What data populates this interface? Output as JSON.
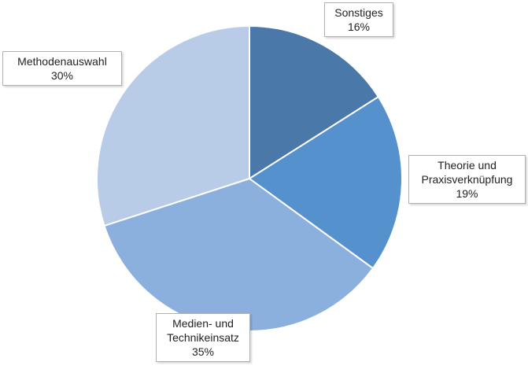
{
  "chart_data": {
    "type": "pie",
    "categories": [
      "Sonstiges",
      "Theorie und Praxisverknüpfung",
      "Medien- und Technikeinsatz",
      "Methodenauswahl"
    ],
    "values": [
      16,
      19,
      35,
      30
    ],
    "value_labels": [
      "16%",
      "19%",
      "35%",
      "30%"
    ],
    "colors": [
      "#4a78a9",
      "#5592cd",
      "#8bb0dd",
      "#b8cce8"
    ]
  }
}
